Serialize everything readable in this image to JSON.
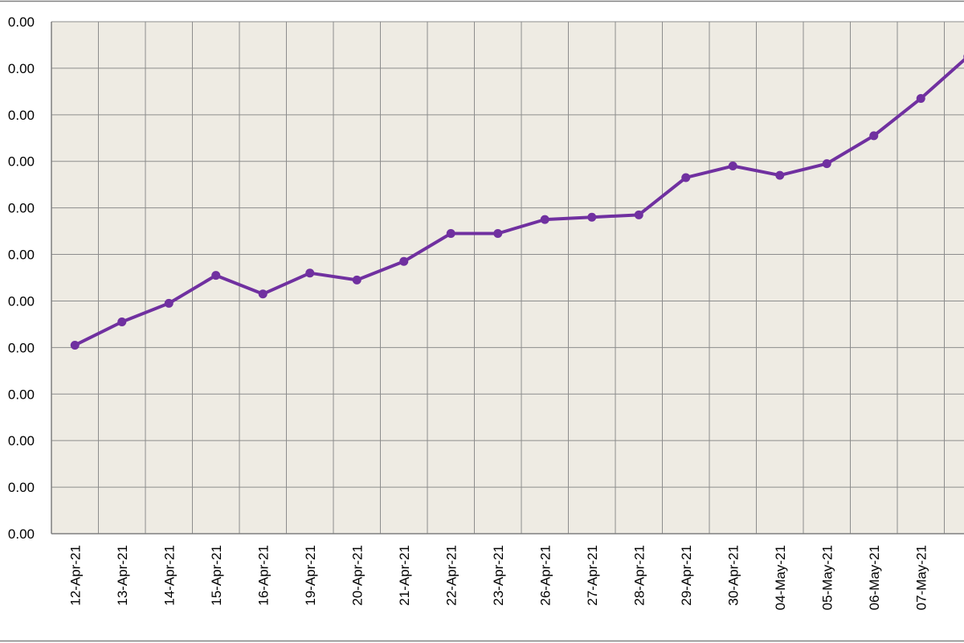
{
  "colors": {
    "plot_background": "#eeebe3",
    "grid": "#8c8c8c",
    "series_line": "#7030a0",
    "axis": "#7f7f7f",
    "frame": "#808080"
  },
  "chart_data": {
    "type": "line",
    "title": "",
    "xlabel": "",
    "ylabel": "",
    "ylim": [
      0,
      11
    ],
    "y_major_step": 1,
    "y_tick_labels": [
      "0.00",
      "0.00",
      "0.00",
      "0.00",
      "0.00",
      "0.00",
      "0.00",
      "0.00",
      "0.00",
      "0.00",
      "0.00",
      "0.00"
    ],
    "grid": true,
    "legend": "none",
    "markers": true,
    "categories": [
      "12-Apr-21",
      "13-Apr-21",
      "14-Apr-21",
      "15-Apr-21",
      "16-Apr-21",
      "19-Apr-21",
      "20-Apr-21",
      "21-Apr-21",
      "22-Apr-21",
      "23-Apr-21",
      "26-Apr-21",
      "27-Apr-21",
      "28-Apr-21",
      "29-Apr-21",
      "30-Apr-21",
      "04-May-21",
      "05-May-21",
      "06-May-21",
      "07-May-21",
      ""
    ],
    "series": [
      {
        "values": [
          4.05,
          4.55,
          4.95,
          5.55,
          5.15,
          5.6,
          5.45,
          5.85,
          6.45,
          6.45,
          6.75,
          6.8,
          6.85,
          7.65,
          7.9,
          7.7,
          7.95,
          8.55,
          9.35,
          10.25
        ]
      }
    ]
  }
}
